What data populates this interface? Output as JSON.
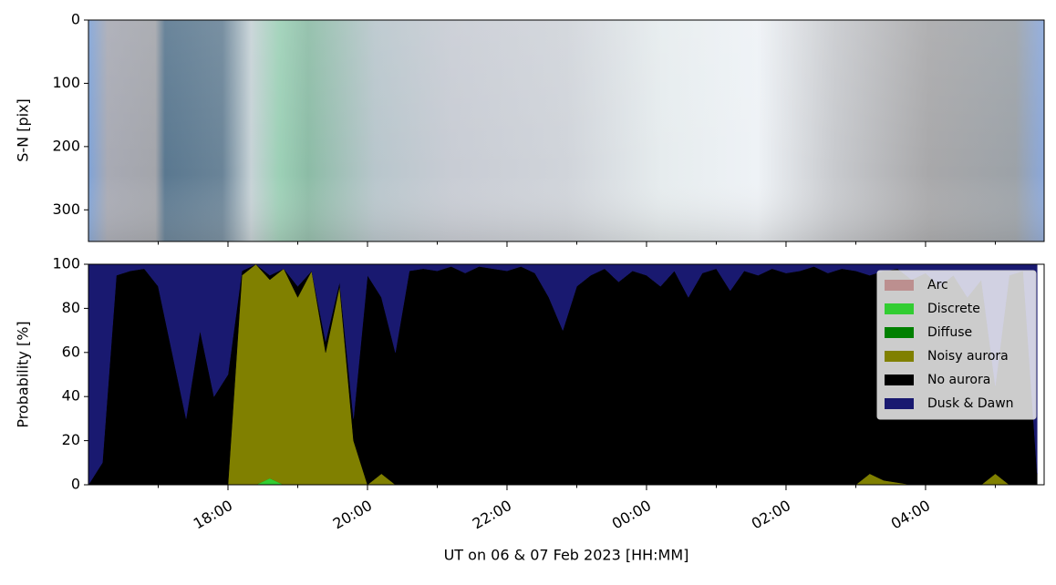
{
  "chart_data": [
    {
      "type": "image",
      "ylabel": "S-N [pix]",
      "ylim": [
        350,
        0
      ],
      "yticks": [
        0,
        100,
        200,
        300
      ]
    },
    {
      "type": "stackedarea",
      "xlabel": "UT on 06 & 07 Feb 2023 [HH:MM]",
      "ylabel": "Probability [%]",
      "xlim": [
        16.0,
        29.7
      ],
      "xticks": [
        {
          "value": 18,
          "label": "18:00"
        },
        {
          "value": 20,
          "label": "20:00"
        },
        {
          "value": 22,
          "label": "22:00"
        },
        {
          "value": 24,
          "label": "00:00"
        },
        {
          "value": 26,
          "label": "02:00"
        },
        {
          "value": 28,
          "label": "04:00"
        }
      ],
      "xminorticks": [
        17,
        19,
        21,
        23,
        25,
        27,
        29
      ],
      "ylim": [
        0,
        100
      ],
      "yticks": [
        0,
        20,
        40,
        60,
        80,
        100
      ],
      "legend": "upper right",
      "x": [
        16.0,
        16.2,
        16.4,
        16.6,
        16.8,
        17.0,
        17.2,
        17.4,
        17.6,
        17.8,
        18.0,
        18.2,
        18.4,
        18.6,
        18.8,
        19.0,
        19.2,
        19.4,
        19.6,
        19.8,
        20.0,
        20.2,
        20.4,
        20.6,
        20.8,
        21.0,
        21.2,
        21.4,
        21.6,
        21.8,
        22.0,
        22.2,
        22.4,
        22.6,
        22.8,
        23.0,
        23.2,
        23.4,
        23.6,
        23.8,
        24.0,
        24.2,
        24.4,
        24.6,
        24.8,
        25.0,
        25.2,
        25.4,
        25.6,
        25.8,
        26.0,
        26.2,
        26.4,
        26.6,
        26.8,
        27.0,
        27.2,
        27.4,
        27.6,
        27.8,
        28.0,
        28.2,
        28.4,
        28.6,
        28.8,
        29.0,
        29.2,
        29.4,
        29.6
      ],
      "series": [
        {
          "name": "Arc",
          "color": "#bc8f8f",
          "values": [
            0,
            0,
            0,
            0,
            0,
            0,
            0,
            0,
            0,
            0,
            0,
            0,
            0,
            0,
            0,
            0,
            0,
            0,
            0,
            0,
            0,
            0,
            0,
            0,
            0,
            0,
            0,
            0,
            0,
            0,
            0,
            0,
            0,
            0,
            0,
            0,
            0,
            0,
            0,
            0,
            0,
            0,
            0,
            0,
            0,
            0,
            0,
            0,
            0,
            0,
            0,
            0,
            0,
            0,
            0,
            0,
            0,
            0,
            0,
            0,
            0,
            0,
            0,
            0,
            0,
            0,
            0,
            0,
            0
          ]
        },
        {
          "name": "Discrete",
          "color": "#32cd32",
          "values": [
            0,
            0,
            0,
            0,
            0,
            0,
            0,
            0,
            0,
            0,
            0,
            0,
            0,
            3,
            0,
            0,
            0,
            0,
            0,
            0,
            0,
            0,
            0,
            0,
            0,
            0,
            0,
            0,
            0,
            0,
            0,
            0,
            0,
            0,
            0,
            0,
            0,
            0,
            0,
            0,
            0,
            0,
            0,
            0,
            0,
            0,
            0,
            0,
            0,
            0,
            0,
            0,
            0,
            0,
            0,
            0,
            0,
            0,
            0,
            0,
            0,
            0,
            0,
            0,
            0,
            0,
            0,
            0,
            0
          ]
        },
        {
          "name": "Diffuse",
          "color": "#008000",
          "values": [
            0,
            0,
            0,
            0,
            0,
            0,
            0,
            0,
            0,
            0,
            0,
            0,
            0,
            0,
            0,
            0,
            0,
            0,
            0,
            0,
            0,
            0,
            0,
            0,
            0,
            0,
            0,
            0,
            0,
            0,
            0,
            0,
            0,
            0,
            0,
            0,
            0,
            0,
            0,
            0,
            0,
            0,
            0,
            0,
            0,
            0,
            0,
            0,
            0,
            0,
            0,
            0,
            0,
            0,
            0,
            0,
            0,
            0,
            0,
            0,
            0,
            0,
            0,
            0,
            0,
            0,
            0,
            0,
            0
          ]
        },
        {
          "name": "Noisy aurora",
          "color": "#808000",
          "values": [
            0,
            0,
            0,
            0,
            0,
            0,
            0,
            0,
            0,
            0,
            0,
            95,
            100,
            90,
            98,
            85,
            97,
            60,
            90,
            20,
            0,
            5,
            0,
            0,
            0,
            0,
            0,
            0,
            0,
            0,
            0,
            0,
            0,
            0,
            0,
            0,
            0,
            0,
            0,
            0,
            0,
            0,
            0,
            0,
            0,
            0,
            0,
            0,
            0,
            0,
            0,
            0,
            0,
            0,
            0,
            0,
            5,
            2,
            1,
            0,
            0,
            0,
            0,
            0,
            0,
            5,
            0,
            0,
            0
          ]
        },
        {
          "name": "No aurora",
          "color": "#000000",
          "values": [
            0,
            10,
            95,
            97,
            98,
            90,
            60,
            30,
            70,
            40,
            50,
            2,
            0,
            2,
            0,
            5,
            0,
            5,
            2,
            10,
            95,
            80,
            60,
            97,
            98,
            97,
            99,
            96,
            99,
            98,
            97,
            99,
            96,
            85,
            70,
            90,
            95,
            98,
            92,
            97,
            95,
            90,
            97,
            85,
            96,
            98,
            88,
            97,
            95,
            98,
            96,
            97,
            99,
            96,
            98,
            97,
            90,
            95,
            97,
            93,
            96,
            90,
            95,
            85,
            93,
            40,
            95,
            97,
            5
          ]
        },
        {
          "name": "Dusk & Dawn",
          "color": "#191970",
          "values": [
            100,
            90,
            5,
            3,
            2,
            10,
            40,
            70,
            30,
            60,
            50,
            3,
            0,
            5,
            2,
            10,
            3,
            35,
            8,
            70,
            5,
            15,
            40,
            3,
            2,
            3,
            1,
            4,
            1,
            2,
            3,
            1,
            4,
            15,
            30,
            10,
            5,
            2,
            8,
            3,
            5,
            10,
            3,
            15,
            4,
            2,
            12,
            3,
            5,
            2,
            4,
            3,
            1,
            4,
            2,
            3,
            5,
            3,
            2,
            7,
            4,
            10,
            5,
            15,
            7,
            55,
            5,
            3,
            95
          ]
        }
      ]
    }
  ]
}
